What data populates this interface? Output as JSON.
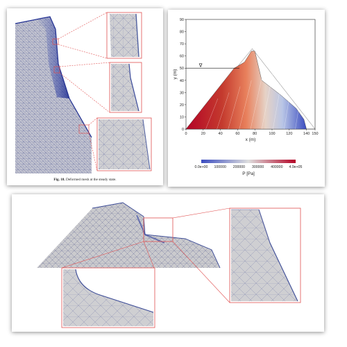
{
  "figure_caption": {
    "label": "Fig. 18.",
    "text": "Deformed mesh at the steady state."
  },
  "colors": {
    "mesh_face": "#c8c8c8",
    "mesh_line": "#3a4a90",
    "zoom_box": "#e05050",
    "pressure_low": "#3b4cc0",
    "pressure_mid": "#dddddd",
    "pressure_high": "#b40426"
  },
  "chart_data": {
    "type": "contour",
    "xlabel": "x (m)",
    "ylabel": "y (m)",
    "xlim": [
      0,
      150
    ],
    "ylim": [
      0,
      90
    ],
    "xticks": [
      "0",
      "20",
      "40",
      "60",
      "80",
      "100",
      "120",
      "140",
      "150"
    ],
    "yticks": [
      "0",
      "10",
      "20",
      "30",
      "40",
      "50",
      "60",
      "70",
      "80",
      "90"
    ],
    "water_level_y": 50,
    "water_symbol": "∇",
    "dam_outline": [
      [
        0,
        0
      ],
      [
        56,
        50
      ],
      [
        68,
        55
      ],
      [
        76,
        64
      ],
      [
        80,
        64
      ],
      [
        88,
        40
      ],
      [
        110,
        28
      ],
      [
        128,
        17
      ],
      [
        137,
        8
      ],
      [
        140,
        0
      ]
    ],
    "reference_triangle": [
      [
        0,
        0
      ],
      [
        77,
        66
      ],
      [
        150,
        0
      ]
    ],
    "colorbar": {
      "title": "P [Pa]",
      "tick_labels": [
        "0.0e+00",
        "100000",
        "200000",
        "300000",
        "400000",
        "4.9e+05"
      ],
      "min": 0,
      "max": 490000
    }
  }
}
